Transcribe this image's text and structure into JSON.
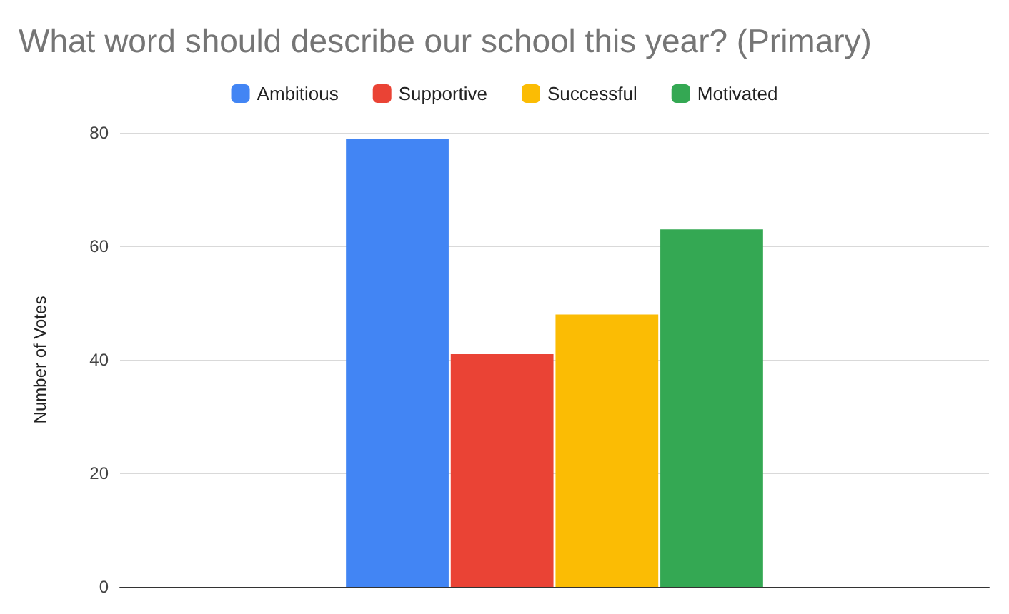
{
  "chart_data": {
    "type": "bar",
    "title": "What word should describe our school this year? (Primary)",
    "ylabel": "Number of Votes",
    "categories": [
      null
    ],
    "series": [
      {
        "name": "Ambitious",
        "color": "#4285f4",
        "values": [
          79
        ]
      },
      {
        "name": "Supportive",
        "color": "#ea4335",
        "values": [
          41
        ]
      },
      {
        "name": "Successful",
        "color": "#fbbc04",
        "values": [
          48
        ]
      },
      {
        "name": "Motivated",
        "color": "#34a853",
        "values": [
          63
        ]
      }
    ],
    "ylim": [
      0,
      80
    ],
    "yticks": [
      0,
      20,
      40,
      60,
      80
    ],
    "grid": "y",
    "legend": "top"
  }
}
